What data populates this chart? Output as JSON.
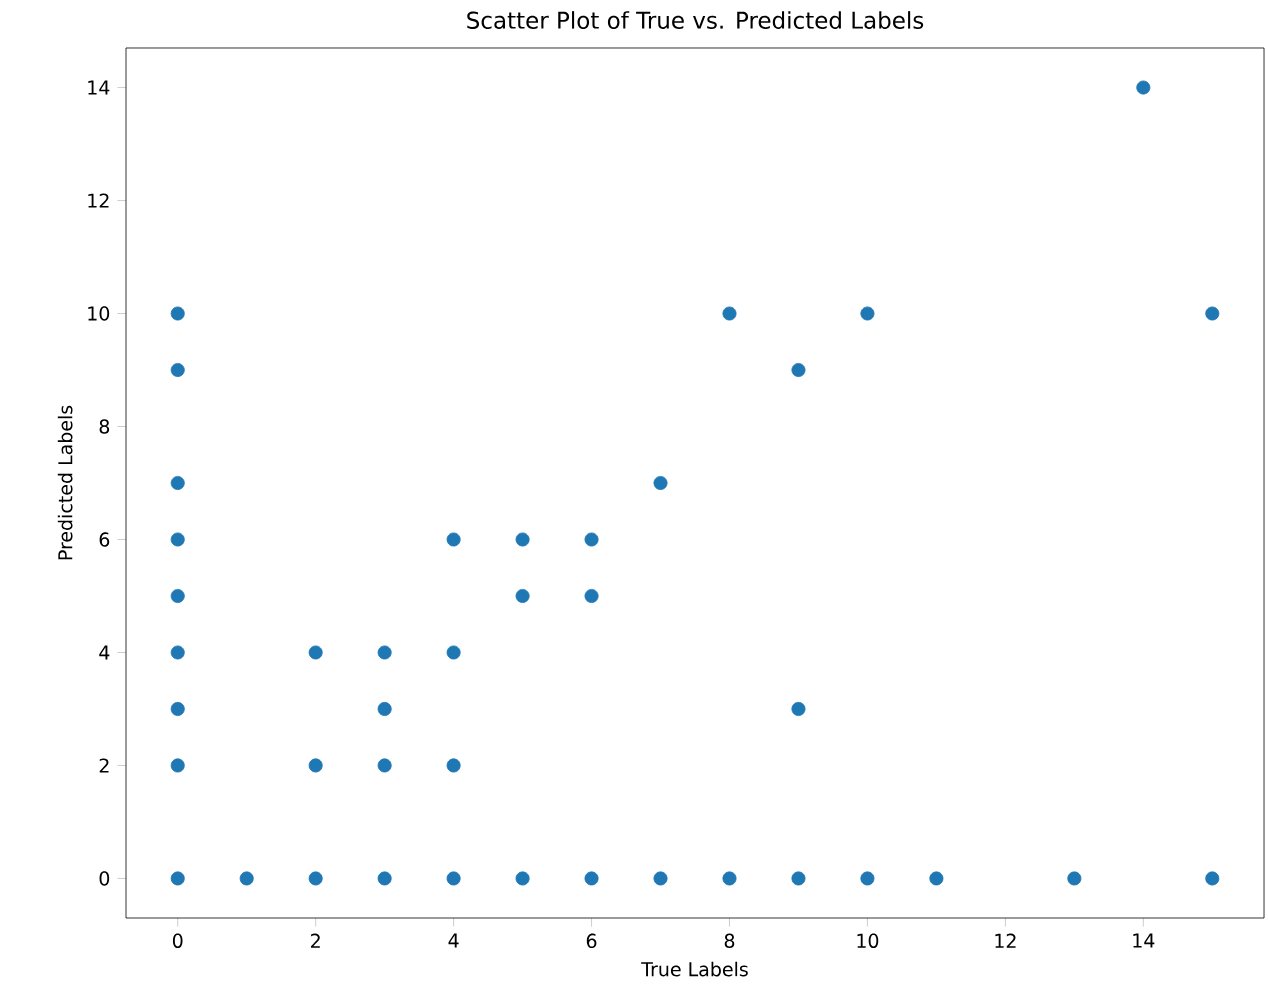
{
  "chart_data": {
    "type": "scatter",
    "title": "Scatter Plot of True vs. Predicted Labels",
    "xlabel": "True Labels",
    "ylabel": "Predicted Labels",
    "x": [
      0,
      0,
      0,
      0,
      0,
      0,
      0,
      0,
      0,
      1,
      2,
      2,
      2,
      3,
      3,
      3,
      3,
      4,
      4,
      4,
      4,
      5,
      5,
      5,
      6,
      6,
      6,
      7,
      7,
      8,
      8,
      9,
      9,
      9,
      10,
      10,
      11,
      13,
      14,
      15,
      15
    ],
    "values": [
      0,
      2,
      3,
      4,
      5,
      6,
      7,
      9,
      10,
      0,
      0,
      2,
      4,
      0,
      2,
      3,
      4,
      0,
      2,
      4,
      6,
      0,
      5,
      6,
      0,
      5,
      6,
      0,
      7,
      0,
      10,
      0,
      3,
      9,
      0,
      10,
      0,
      0,
      14,
      0,
      10
    ],
    "color": "#1f77b4",
    "xlim": [
      -0.75,
      15.75
    ],
    "ylim": [
      -0.7,
      14.7
    ],
    "xticks": [
      0,
      2,
      4,
      6,
      8,
      10,
      12,
      14
    ],
    "yticks": [
      0,
      2,
      4,
      6,
      8,
      10,
      12,
      14
    ]
  }
}
